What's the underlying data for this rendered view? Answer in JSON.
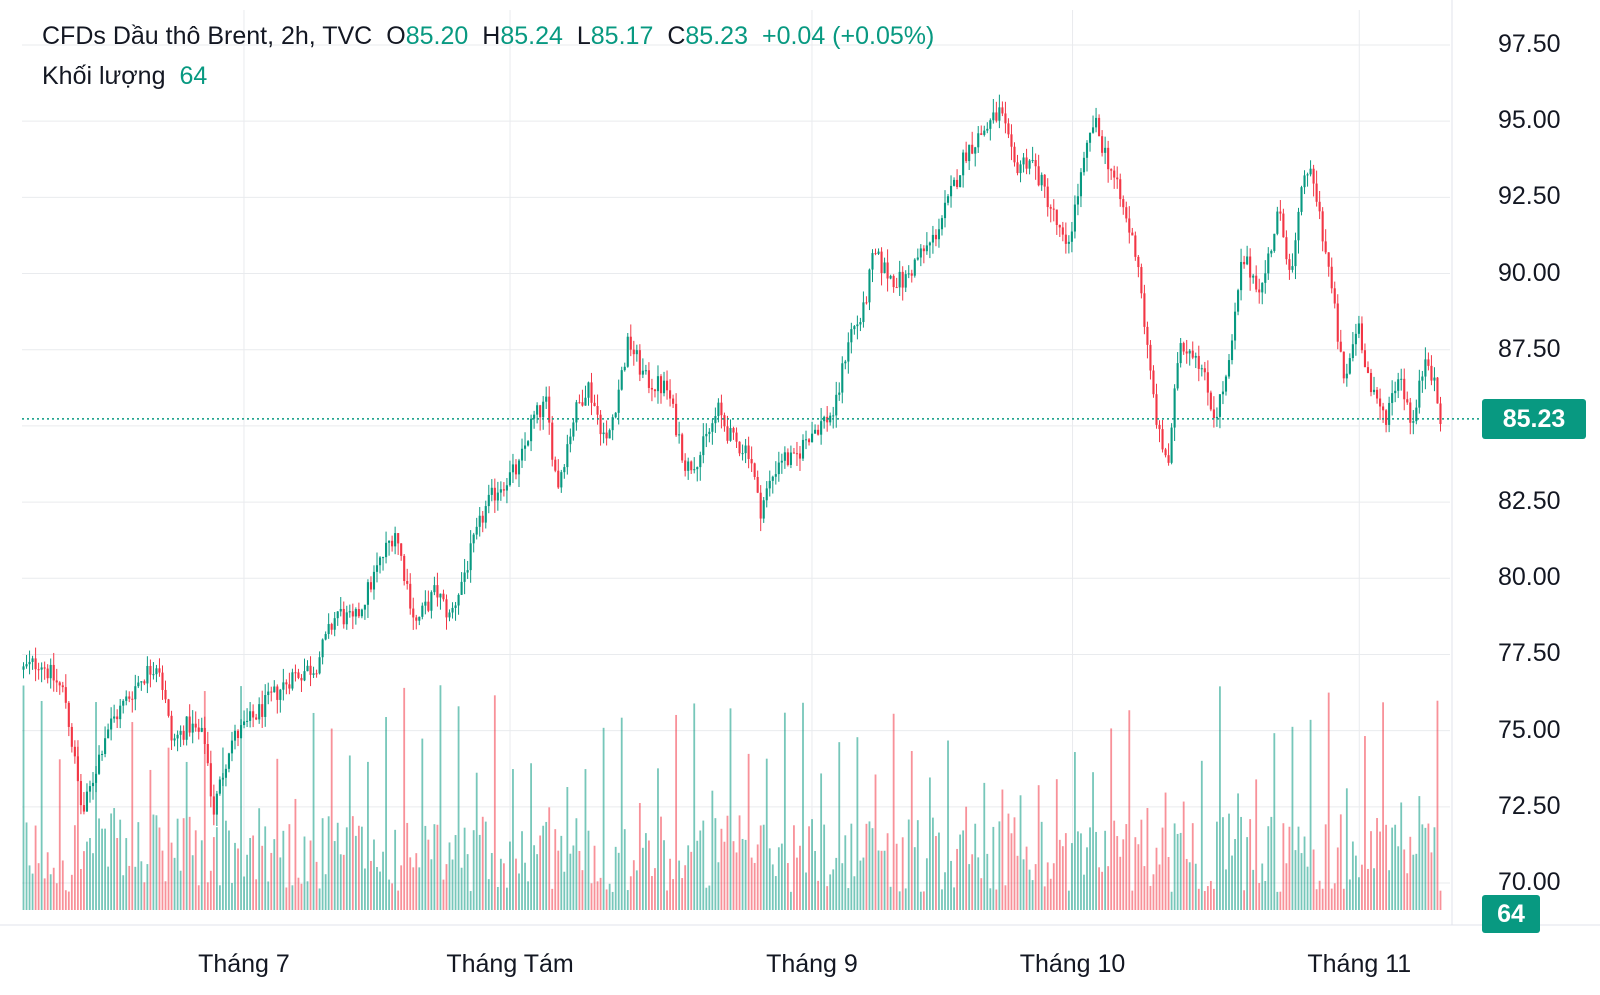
{
  "legend": {
    "title": "CFDs Dầu thô Brent, 2h, TVC",
    "o_label": "O",
    "o_value": "85.20",
    "h_label": "H",
    "h_value": "85.24",
    "l_label": "L",
    "l_value": "85.17",
    "c_label": "C",
    "c_value": "85.23",
    "change": "+0.04 (+0.05%)",
    "volume_label": "Khối lượng",
    "volume_value": "64"
  },
  "last_price_label": "85.23",
  "last_volume_label": "64",
  "colors": {
    "up": "#089981",
    "down": "#f23645",
    "grid": "#e9ebee",
    "text": "#131722"
  },
  "chart_data": {
    "type": "candlestick",
    "title": "CFDs Dầu thô Brent, 2h, TVC",
    "ylim": [
      70,
      97.5
    ],
    "yticks": [
      "97.50",
      "95.00",
      "92.50",
      "90.00",
      "87.50",
      "85.00",
      "82.50",
      "80.00",
      "77.50",
      "75.00",
      "72.50",
      "70.00"
    ],
    "xticks": [
      "Tháng 7",
      "Tháng Tám",
      "Tháng 9",
      "Tháng 10",
      "Tháng 11"
    ],
    "last_price": 85.23,
    "grid": true,
    "price_path": [
      {
        "t": 0,
        "p": 77.0
      },
      {
        "t": 0.012,
        "p": 77.3
      },
      {
        "t": 0.03,
        "p": 76.2
      },
      {
        "t": 0.043,
        "p": 72.2
      },
      {
        "t": 0.06,
        "p": 75.0
      },
      {
        "t": 0.085,
        "p": 76.7
      },
      {
        "t": 0.098,
        "p": 77.3
      },
      {
        "t": 0.108,
        "p": 74.6
      },
      {
        "t": 0.12,
        "p": 75.2
      },
      {
        "t": 0.132,
        "p": 74.7
      },
      {
        "t": 0.138,
        "p": 72.3
      },
      {
        "t": 0.15,
        "p": 74.6
      },
      {
        "t": 0.175,
        "p": 75.8
      },
      {
        "t": 0.195,
        "p": 76.8
      },
      {
        "t": 0.212,
        "p": 77.1
      },
      {
        "t": 0.228,
        "p": 78.9
      },
      {
        "t": 0.24,
        "p": 78.5
      },
      {
        "t": 0.258,
        "p": 80.4
      },
      {
        "t": 0.27,
        "p": 81.6
      },
      {
        "t": 0.285,
        "p": 78.5
      },
      {
        "t": 0.3,
        "p": 79.6
      },
      {
        "t": 0.31,
        "p": 78.7
      },
      {
        "t": 0.335,
        "p": 82.2
      },
      {
        "t": 0.345,
        "p": 83.0
      },
      {
        "t": 0.36,
        "p": 83.6
      },
      {
        "t": 0.37,
        "p": 85.2
      },
      {
        "t": 0.38,
        "p": 85.7
      },
      {
        "t": 0.388,
        "p": 83.0
      },
      {
        "t": 0.4,
        "p": 85.3
      },
      {
        "t": 0.41,
        "p": 86.4
      },
      {
        "t": 0.424,
        "p": 84.4
      },
      {
        "t": 0.432,
        "p": 86.1
      },
      {
        "t": 0.44,
        "p": 87.8
      },
      {
        "t": 0.452,
        "p": 86.5
      },
      {
        "t": 0.468,
        "p": 86.2
      },
      {
        "t": 0.482,
        "p": 83.6
      },
      {
        "t": 0.492,
        "p": 84.1
      },
      {
        "t": 0.505,
        "p": 85.5
      },
      {
        "t": 0.515,
        "p": 84.5
      },
      {
        "t": 0.528,
        "p": 84.2
      },
      {
        "t": 0.535,
        "p": 82.2
      },
      {
        "t": 0.55,
        "p": 84.0
      },
      {
        "t": 0.56,
        "p": 83.8
      },
      {
        "t": 0.57,
        "p": 84.7
      },
      {
        "t": 0.59,
        "p": 85.5
      },
      {
        "t": 0.6,
        "p": 88.0
      },
      {
        "t": 0.61,
        "p": 88.6
      },
      {
        "t": 0.618,
        "p": 90.6
      },
      {
        "t": 0.63,
        "p": 89.9
      },
      {
        "t": 0.64,
        "p": 89.7
      },
      {
        "t": 0.65,
        "p": 90.5
      },
      {
        "t": 0.66,
        "p": 91.0
      },
      {
        "t": 0.672,
        "p": 92.3
      },
      {
        "t": 0.685,
        "p": 94.0
      },
      {
        "t": 0.7,
        "p": 94.8
      },
      {
        "t": 0.71,
        "p": 95.3
      },
      {
        "t": 0.72,
        "p": 93.5
      },
      {
        "t": 0.732,
        "p": 93.8
      },
      {
        "t": 0.745,
        "p": 92.4
      },
      {
        "t": 0.758,
        "p": 90.7
      },
      {
        "t": 0.768,
        "p": 93.0
      },
      {
        "t": 0.778,
        "p": 95.0
      },
      {
        "t": 0.79,
        "p": 93.5
      },
      {
        "t": 0.8,
        "p": 92.0
      },
      {
        "t": 0.81,
        "p": 90.5
      },
      {
        "t": 0.818,
        "p": 87.0
      },
      {
        "t": 0.826,
        "p": 84.5
      },
      {
        "t": 0.833,
        "p": 83.8
      },
      {
        "t": 0.84,
        "p": 87.8
      },
      {
        "t": 0.853,
        "p": 87.4
      },
      {
        "t": 0.866,
        "p": 85.3
      },
      {
        "t": 0.876,
        "p": 86.8
      },
      {
        "t": 0.886,
        "p": 90.5
      },
      {
        "t": 0.9,
        "p": 89.5
      },
      {
        "t": 0.912,
        "p": 92.0
      },
      {
        "t": 0.922,
        "p": 90.0
      },
      {
        "t": 0.932,
        "p": 93.6
      },
      {
        "t": 0.94,
        "p": 92.5
      },
      {
        "t": 0.95,
        "p": 89.8
      },
      {
        "t": 0.96,
        "p": 86.3
      },
      {
        "t": 0.97,
        "p": 88.5
      },
      {
        "t": 0.98,
        "p": 86.0
      },
      {
        "t": 0.99,
        "p": 85.3
      },
      {
        "t": 1.0,
        "p": 86.8
      },
      {
        "t": 1.01,
        "p": 85.0
      },
      {
        "t": 1.02,
        "p": 87.6
      },
      {
        "t": 1.03,
        "p": 85.2
      }
    ]
  }
}
